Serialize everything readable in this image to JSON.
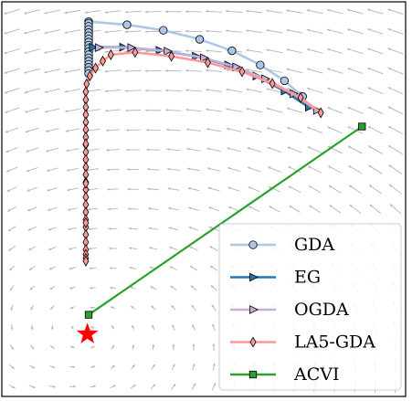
{
  "chart_data": {
    "type": "line",
    "title": "",
    "xlabel": "",
    "ylabel": "",
    "xlim": [
      0,
      1
    ],
    "ylim": [
      0,
      1
    ],
    "grid": false,
    "legend_position": "bottom-right",
    "background": "vector-field",
    "series": [
      {
        "name": "GDA",
        "color": "#aec7e8",
        "marker": "circle",
        "marker_fill": "#aec7e8",
        "x": [
          0.745,
          0.7,
          0.64,
          0.57,
          0.49,
          0.4,
          0.31,
          0.215,
          0.215,
          0.215,
          0.215,
          0.215,
          0.215,
          0.215,
          0.215,
          0.215,
          0.215,
          0.215,
          0.215,
          0.215,
          0.215,
          0.215,
          0.215,
          0.215,
          0.215
        ],
        "y": [
          0.76,
          0.8,
          0.84,
          0.876,
          0.905,
          0.928,
          0.942,
          0.95,
          0.946,
          0.938,
          0.93,
          0.922,
          0.914,
          0.906,
          0.898,
          0.89,
          0.882,
          0.874,
          0.866,
          0.858,
          0.85,
          0.842,
          0.834,
          0.826,
          0.818
        ]
      },
      {
        "name": "EG",
        "color": "#1f77b4",
        "marker": "triangle-right",
        "marker_fill": "#1f77b4",
        "x": [
          0.76,
          0.7,
          0.63,
          0.56,
          0.48,
          0.39,
          0.3,
          0.225
        ],
        "y": [
          0.733,
          0.774,
          0.812,
          0.84,
          0.862,
          0.877,
          0.885,
          0.885
        ]
      },
      {
        "name": "OGDA",
        "color": "#c5b0d5",
        "marker": "triangle-right",
        "marker_fill": "#c5b0d5",
        "x": [
          0.78,
          0.722,
          0.652,
          0.58,
          0.5,
          0.41,
          0.32,
          0.24
        ],
        "y": [
          0.725,
          0.767,
          0.805,
          0.835,
          0.858,
          0.875,
          0.884,
          0.884
        ]
      },
      {
        "name": "LA5-GDA",
        "color": "#ff9896",
        "marker": "diamond",
        "marker_fill": "#ff9896",
        "x": [
          0.79,
          0.74,
          0.67,
          0.595,
          0.51,
          0.42,
          0.33,
          0.27,
          0.25,
          0.232,
          0.218,
          0.21,
          0.208,
          0.208,
          0.208,
          0.208,
          0.208,
          0.208,
          0.208,
          0.208,
          0.208,
          0.208,
          0.208,
          0.208,
          0.208,
          0.208,
          0.208,
          0.208,
          0.208,
          0.208,
          0.208,
          0.208,
          0.208,
          0.208,
          0.208,
          0.208,
          0.208,
          0.208,
          0.208,
          0.208
        ],
        "y": [
          0.719,
          0.757,
          0.793,
          0.823,
          0.846,
          0.862,
          0.872,
          0.866,
          0.85,
          0.832,
          0.812,
          0.792,
          0.772,
          0.752,
          0.733,
          0.714,
          0.695,
          0.676,
          0.657,
          0.638,
          0.619,
          0.6,
          0.581,
          0.562,
          0.543,
          0.524,
          0.505,
          0.486,
          0.467,
          0.448,
          0.429,
          0.41,
          0.391,
          0.372,
          0.36,
          0.35,
          0.343,
          0.44,
          0.54,
          0.64
        ]
      },
      {
        "name": "ACVI",
        "color": "#2ca02c",
        "marker": "square",
        "marker_fill": "#2ca02c",
        "x": [
          0.892,
          0.215
        ],
        "y": [
          0.684,
          0.207
        ]
      }
    ],
    "optimum": {
      "marker": "star",
      "color": "#ff0000",
      "x": 0.212,
      "y": 0.158
    }
  }
}
